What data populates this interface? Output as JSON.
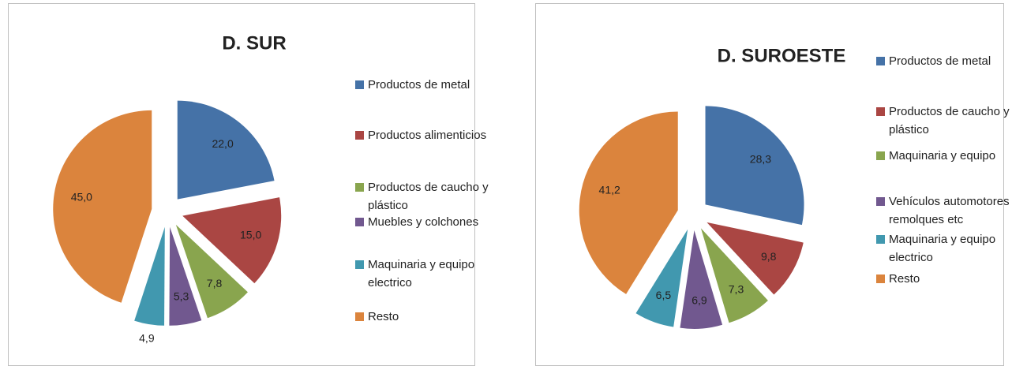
{
  "chart_data": [
    {
      "type": "pie",
      "title": "D. SUR",
      "categories": [
        "Productos de metal",
        "Productos alimenticios",
        "Productos de caucho y plástico",
        "Muebles y colchones",
        "Maquinaria y equipo electrico",
        "Resto"
      ],
      "values": [
        22.0,
        15.0,
        7.8,
        5.3,
        4.9,
        45.0
      ],
      "value_labels": [
        "22,0",
        "15,0",
        "7,8",
        "5,3",
        "4,9",
        "45,0"
      ],
      "colors": [
        "#4572a7",
        "#aa4643",
        "#89a54e",
        "#71588f",
        "#4198af",
        "#db843d"
      ]
    },
    {
      "type": "pie",
      "title": "D. SUROESTE",
      "categories": [
        "Productos de metal",
        "Productos de caucho y plástico",
        "Maquinaria y equipo",
        "Vehículos automotores remolques etc",
        "Maquinaria y equipo electrico",
        "Resto"
      ],
      "values": [
        28.3,
        9.8,
        7.3,
        6.9,
        6.5,
        41.2
      ],
      "value_labels": [
        "28,3",
        "9,8",
        "7,3",
        "6,9",
        "6,5",
        "41,2"
      ],
      "colors": [
        "#4572a7",
        "#aa4643",
        "#89a54e",
        "#71588f",
        "#4198af",
        "#db843d"
      ]
    }
  ]
}
